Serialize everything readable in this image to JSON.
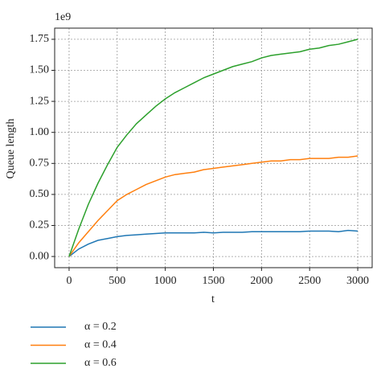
{
  "chart_data": {
    "type": "line",
    "xlabel": "t",
    "ylabel": "Queue length",
    "y_offset_label": "1e9",
    "x": [
      0,
      100,
      200,
      300,
      400,
      500,
      600,
      700,
      800,
      900,
      1000,
      1100,
      1200,
      1300,
      1400,
      1500,
      1600,
      1700,
      1800,
      1900,
      2000,
      2100,
      2200,
      2300,
      2400,
      2500,
      2600,
      2700,
      2800,
      2900,
      3000
    ],
    "series": [
      {
        "name": "α = 0.2",
        "color": "#1f77b4",
        "values": [
          0,
          0.06,
          0.1,
          0.13,
          0.145,
          0.16,
          0.17,
          0.175,
          0.18,
          0.185,
          0.19,
          0.19,
          0.19,
          0.19,
          0.195,
          0.19,
          0.195,
          0.195,
          0.195,
          0.2,
          0.2,
          0.2,
          0.2,
          0.2,
          0.2,
          0.205,
          0.205,
          0.205,
          0.2,
          0.21,
          0.205
        ]
      },
      {
        "name": "α = 0.4",
        "color": "#ff7f0e",
        "values": [
          0,
          0.11,
          0.2,
          0.29,
          0.37,
          0.45,
          0.5,
          0.54,
          0.58,
          0.61,
          0.64,
          0.66,
          0.67,
          0.68,
          0.7,
          0.71,
          0.72,
          0.73,
          0.74,
          0.75,
          0.76,
          0.77,
          0.77,
          0.78,
          0.78,
          0.79,
          0.79,
          0.79,
          0.8,
          0.8,
          0.81
        ]
      },
      {
        "name": "α = 0.6",
        "color": "#2ca02c",
        "values": [
          0,
          0.22,
          0.42,
          0.59,
          0.74,
          0.88,
          0.98,
          1.07,
          1.14,
          1.21,
          1.27,
          1.32,
          1.36,
          1.4,
          1.44,
          1.47,
          1.5,
          1.53,
          1.55,
          1.57,
          1.6,
          1.62,
          1.63,
          1.64,
          1.65,
          1.67,
          1.68,
          1.7,
          1.71,
          1.73,
          1.75
        ]
      }
    ],
    "xlim": [
      -150,
      3150
    ],
    "ylim": [
      -0.09,
      1.84
    ],
    "xticks": [
      0,
      500,
      1000,
      1500,
      2000,
      2500,
      3000
    ],
    "yticks": [
      {
        "value": 0,
        "label": "0.00"
      },
      0.25,
      {
        "value": 0.5,
        "label": "0.50"
      },
      0.75,
      {
        "value": 1,
        "label": "1.00"
      },
      1.25,
      {
        "value": 1.5,
        "label": "1.50"
      },
      1.75
    ],
    "grid": true,
    "legend": "below"
  }
}
